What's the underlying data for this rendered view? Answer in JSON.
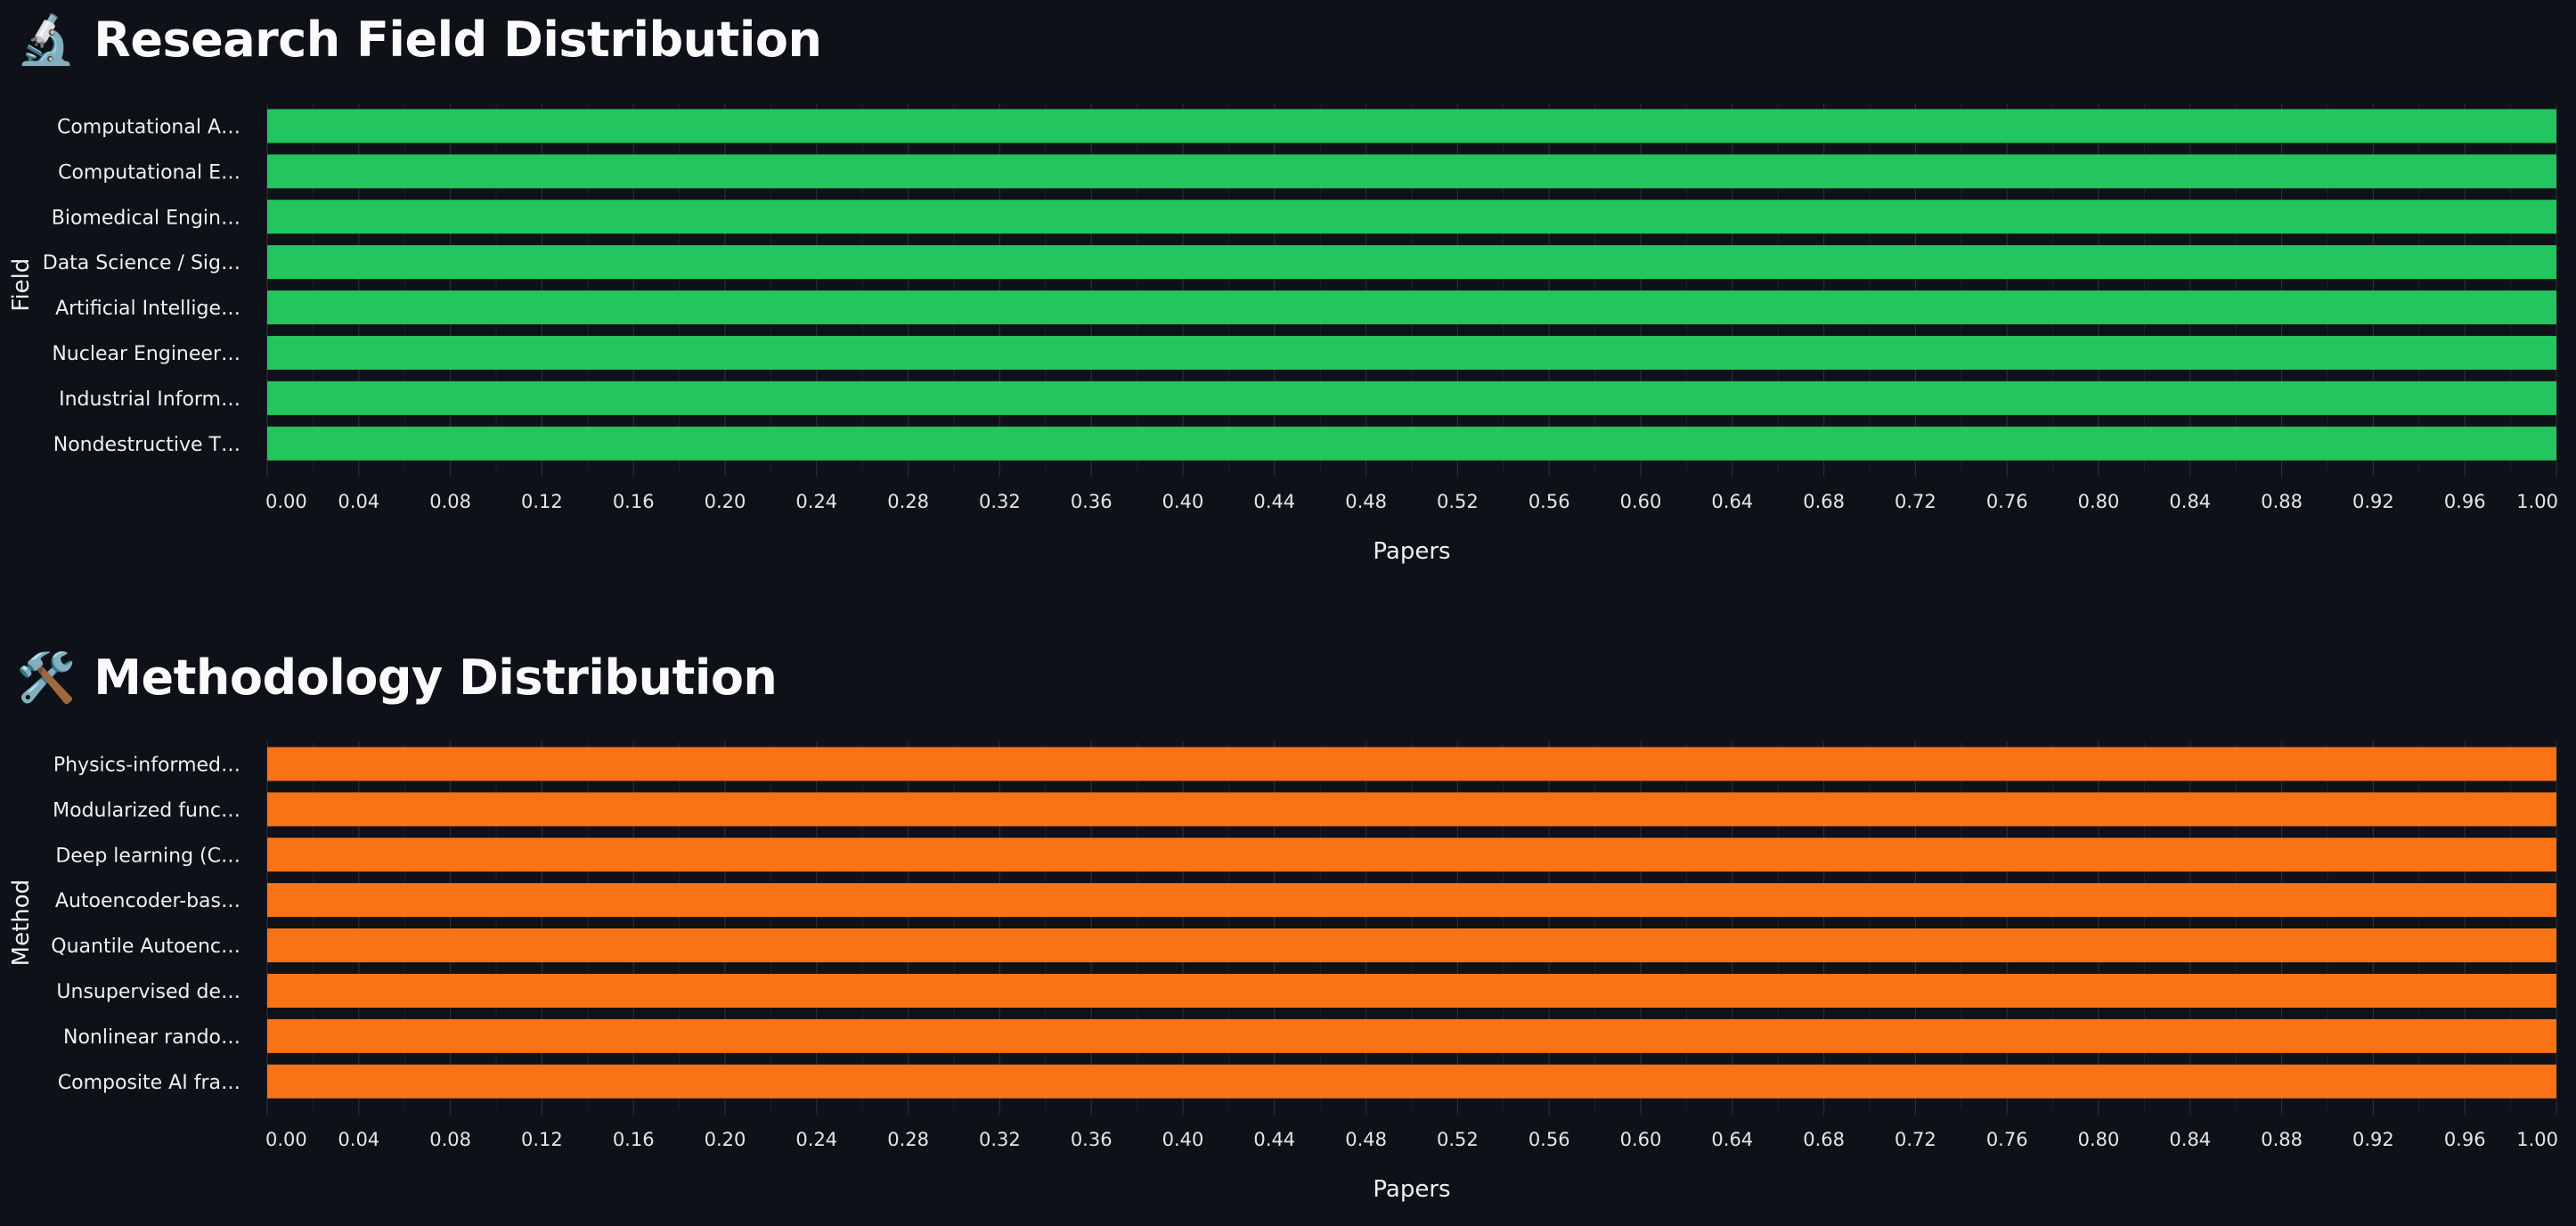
{
  "charts": [
    {
      "icon": "🔬",
      "icon_name": "microscope-icon",
      "chart_data": {
        "type": "bar",
        "orientation": "horizontal",
        "title": "Research Field Distribution",
        "xlabel": "Papers",
        "ylabel": "Field",
        "xlim": [
          0,
          1
        ],
        "grid": true,
        "color": "#22c55e",
        "categories": [
          "Computational A…",
          "Computational E…",
          "Biomedical Engin…",
          "Data Science / Sig…",
          "Artificial Intellige…",
          "Nuclear Engineer…",
          "Industrial Inform…",
          "Nondestructive T…"
        ],
        "values": [
          1,
          1,
          1,
          1,
          1,
          1,
          1,
          1
        ],
        "ticks": [
          "0.00",
          "0.04",
          "0.08",
          "0.12",
          "0.16",
          "0.20",
          "0.24",
          "0.28",
          "0.32",
          "0.36",
          "0.40",
          "0.44",
          "0.48",
          "0.52",
          "0.56",
          "0.60",
          "0.64",
          "0.68",
          "0.72",
          "0.76",
          "0.80",
          "0.84",
          "0.88",
          "0.92",
          "0.96",
          "1.00"
        ]
      }
    },
    {
      "icon": "🛠️",
      "icon_name": "tools-icon",
      "chart_data": {
        "type": "bar",
        "orientation": "horizontal",
        "title": "Methodology Distribution",
        "xlabel": "Papers",
        "ylabel": "Method",
        "xlim": [
          0,
          1
        ],
        "grid": true,
        "color": "#f97316",
        "categories": [
          "Physics-informed…",
          "Modularized func…",
          "Deep learning (C…",
          "Autoencoder-bas…",
          "Quantile Autoenc…",
          "Unsupervised de…",
          "Nonlinear rando…",
          "Composite AI fra…"
        ],
        "values": [
          1,
          1,
          1,
          1,
          1,
          1,
          1,
          1
        ],
        "ticks": [
          "0.00",
          "0.04",
          "0.08",
          "0.12",
          "0.16",
          "0.20",
          "0.24",
          "0.28",
          "0.32",
          "0.36",
          "0.40",
          "0.44",
          "0.48",
          "0.52",
          "0.56",
          "0.60",
          "0.64",
          "0.68",
          "0.72",
          "0.76",
          "0.80",
          "0.84",
          "0.88",
          "0.92",
          "0.96",
          "1.00"
        ]
      }
    }
  ]
}
